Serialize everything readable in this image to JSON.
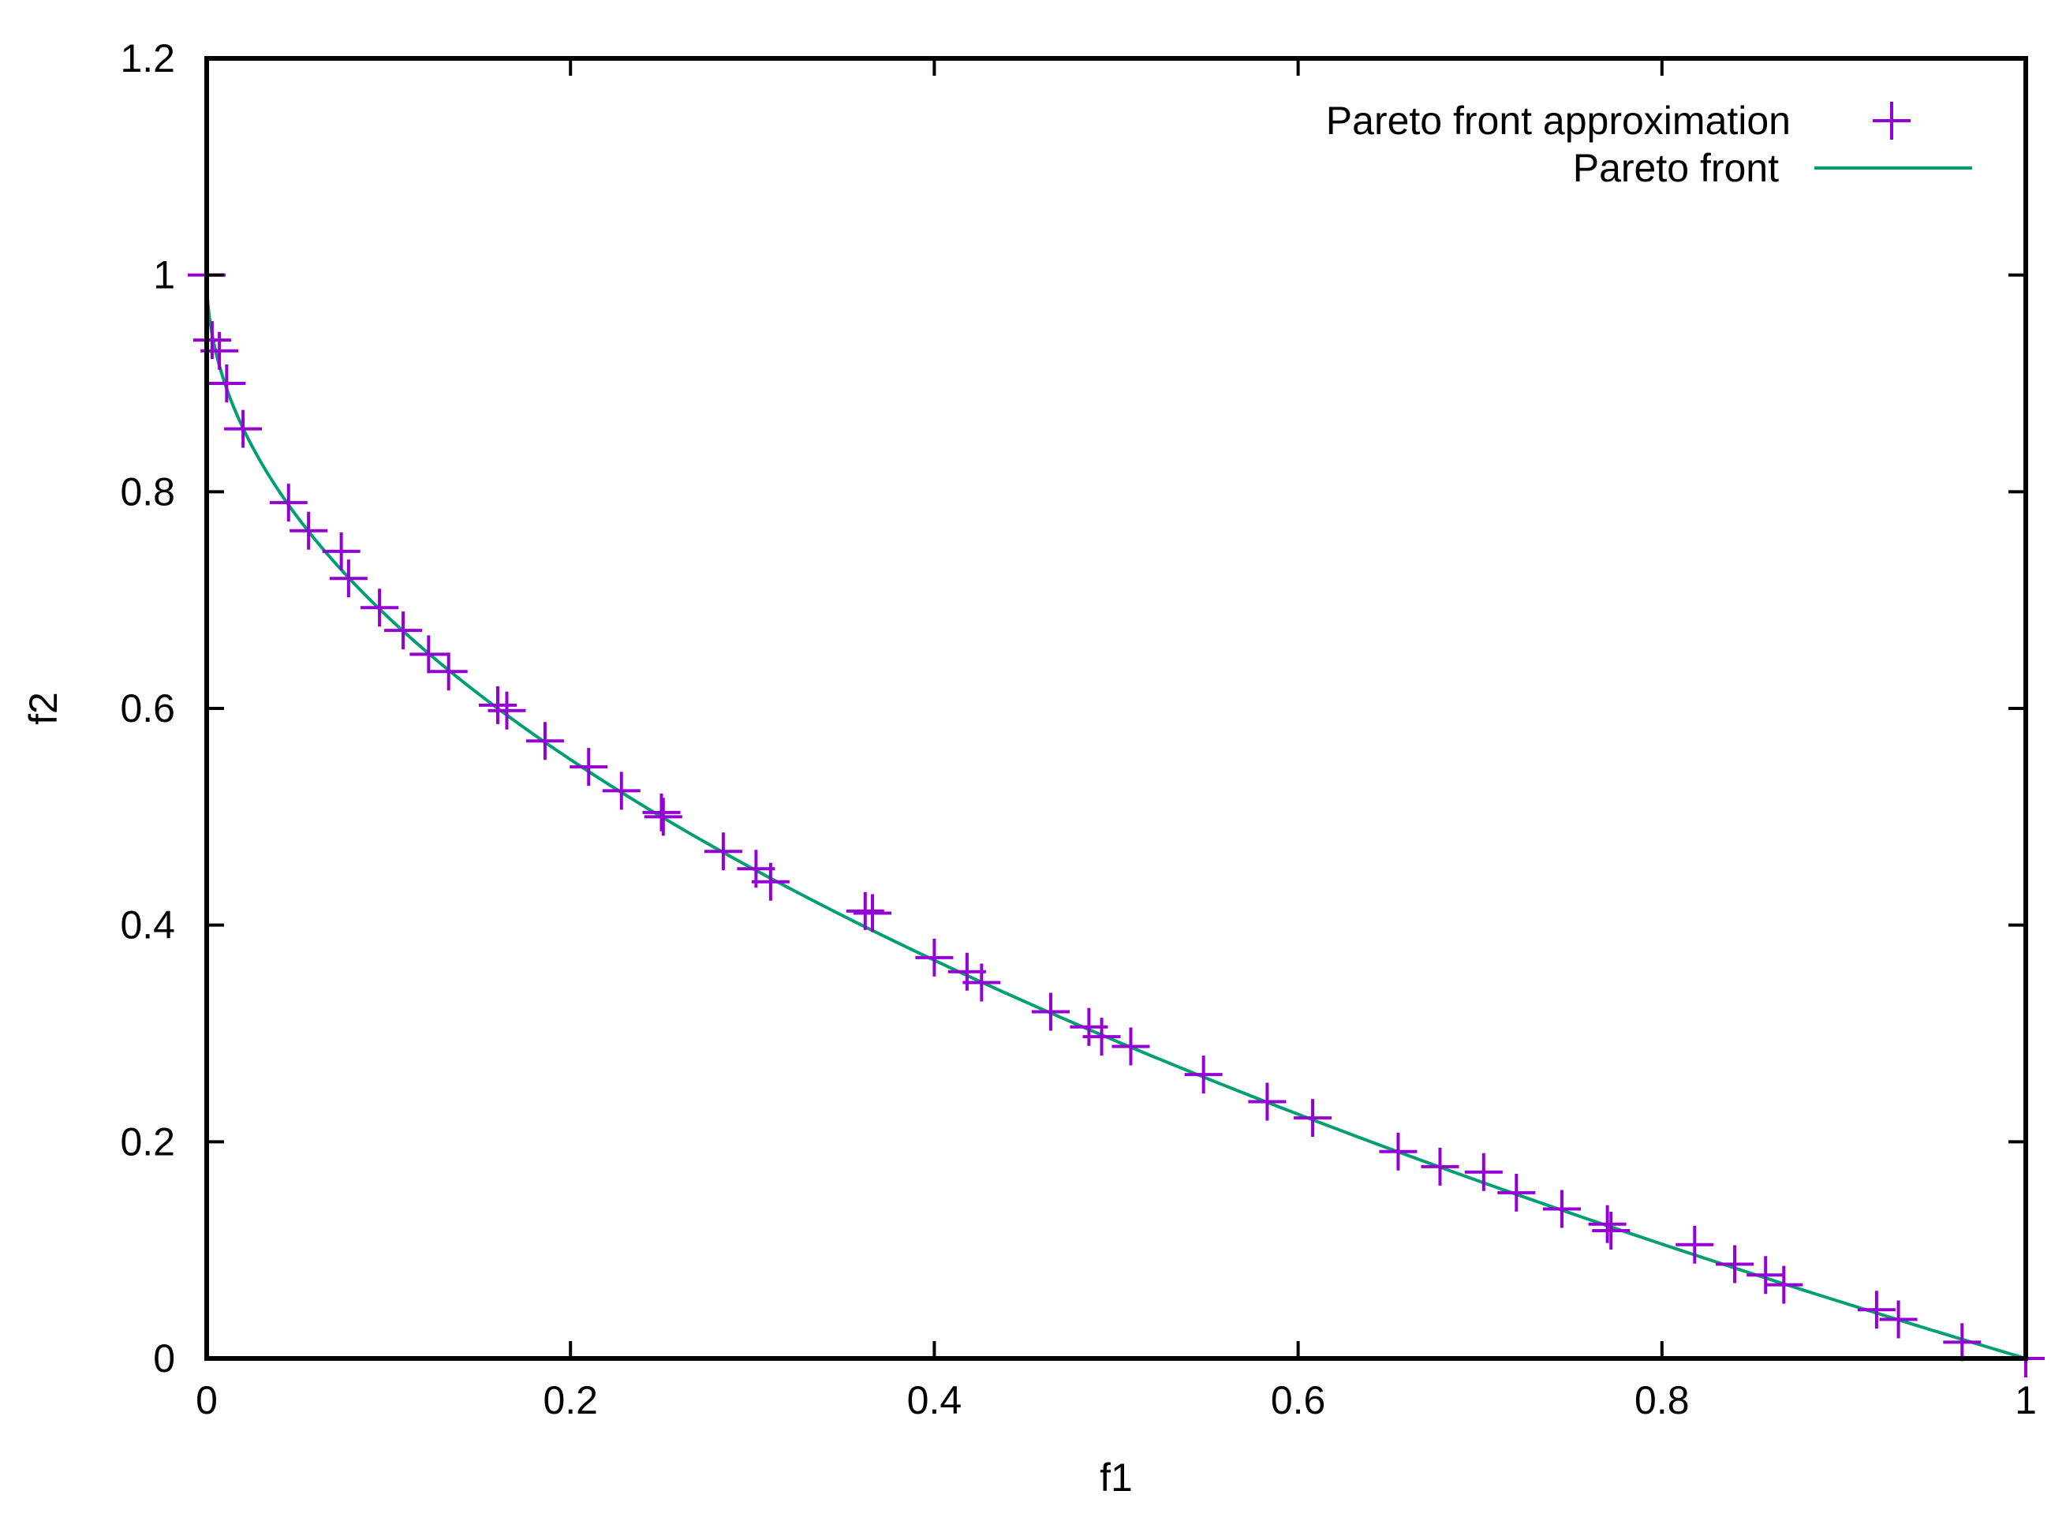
{
  "chart_data": {
    "type": "scatter",
    "title": "",
    "xlabel": "f1",
    "ylabel": "f2",
    "xlim": [
      0,
      1
    ],
    "ylim": [
      0,
      1.2
    ],
    "x_ticks": [
      0,
      0.2,
      0.4,
      0.6,
      0.8,
      1
    ],
    "x_tick_labels": [
      "0",
      "0.2",
      "0.4",
      "0.6",
      "0.8",
      "1"
    ],
    "y_ticks": [
      0,
      0.2,
      0.4,
      0.6,
      0.8,
      1,
      1.2
    ],
    "y_tick_labels": [
      "0",
      "0.2",
      "0.4",
      "0.6",
      "0.8",
      "1",
      "1.2"
    ],
    "grid": false,
    "legend_position": "top-right",
    "series": [
      {
        "name": "Pareto front approximation",
        "type": "scatter",
        "marker": "plus",
        "color": "#9400d3",
        "points": [
          [
            0.0,
            1.0
          ],
          [
            0.003,
            0.94
          ],
          [
            0.007,
            0.93
          ],
          [
            0.011,
            0.9
          ],
          [
            0.02,
            0.858
          ],
          [
            0.045,
            0.79
          ],
          [
            0.056,
            0.764
          ],
          [
            0.074,
            0.745
          ],
          [
            0.078,
            0.72
          ],
          [
            0.095,
            0.693
          ],
          [
            0.108,
            0.672
          ],
          [
            0.122,
            0.65
          ],
          [
            0.133,
            0.634
          ],
          [
            0.16,
            0.603
          ],
          [
            0.165,
            0.598
          ],
          [
            0.186,
            0.57
          ],
          [
            0.21,
            0.546
          ],
          [
            0.228,
            0.524
          ],
          [
            0.25,
            0.504
          ],
          [
            0.251,
            0.5
          ],
          [
            0.284,
            0.468
          ],
          [
            0.302,
            0.452
          ],
          [
            0.31,
            0.44
          ],
          [
            0.362,
            0.413
          ],
          [
            0.366,
            0.411
          ],
          [
            0.4,
            0.37
          ],
          [
            0.418,
            0.357
          ],
          [
            0.426,
            0.347
          ],
          [
            0.464,
            0.32
          ],
          [
            0.485,
            0.306
          ],
          [
            0.492,
            0.297
          ],
          [
            0.508,
            0.288
          ],
          [
            0.548,
            0.262
          ],
          [
            0.583,
            0.237
          ],
          [
            0.608,
            0.222
          ],
          [
            0.655,
            0.191
          ],
          [
            0.678,
            0.177
          ],
          [
            0.702,
            0.172
          ],
          [
            0.72,
            0.153
          ],
          [
            0.745,
            0.138
          ],
          [
            0.77,
            0.124
          ],
          [
            0.772,
            0.118
          ],
          [
            0.818,
            0.105
          ],
          [
            0.84,
            0.087
          ],
          [
            0.857,
            0.077
          ],
          [
            0.867,
            0.068
          ],
          [
            0.918,
            0.045
          ],
          [
            0.93,
            0.036
          ],
          [
            0.965,
            0.015
          ],
          [
            1.0,
            0.0
          ]
        ]
      },
      {
        "name": "Pareto front",
        "type": "line",
        "color": "#009e73",
        "function": "f2 = 1 - sqrt(f1) on x in [0, 1]"
      }
    ]
  }
}
